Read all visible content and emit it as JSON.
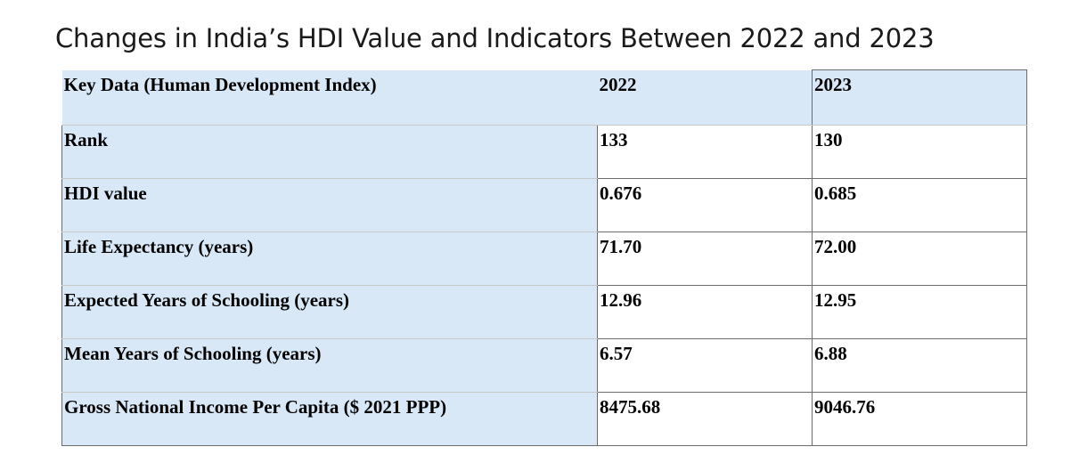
{
  "title": "Changes in India’s HDI Value and Indicators Between 2022 and 2023",
  "table": {
    "headers": [
      "Key Data (Human Development Index)",
      "2022",
      "2023"
    ],
    "rows": [
      [
        "Rank",
        "133",
        "130"
      ],
      [
        "HDI value",
        "0.676",
        "0.685"
      ],
      [
        "Life Expectancy (years)",
        "71.70",
        "72.00"
      ],
      [
        "Expected Years of Schooling (years)",
        "12.96",
        "12.95"
      ],
      [
        "Mean Years of Schooling (years)",
        "6.57",
        "6.88"
      ],
      [
        "Gross National Income Per Capita ($ 2021 PPP)",
        "8475.68",
        "9046.76"
      ]
    ]
  },
  "colors": {
    "header_fill": "#d9e8f6",
    "border": "#6b6b6b"
  }
}
